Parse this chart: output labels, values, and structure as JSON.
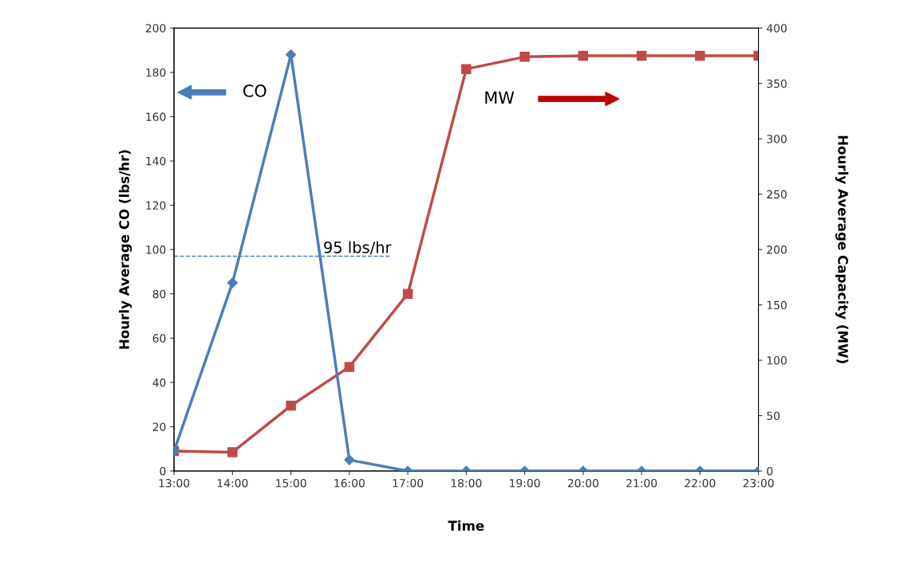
{
  "chart_data": {
    "type": "line",
    "xlabel": "Time",
    "ylabel": "Hourly Average CO (lbs/hr)",
    "y2label": "Hourly Average Capacity (MW)",
    "categories": [
      "13:00",
      "14:00",
      "15:00",
      "16:00",
      "17:00",
      "18:00",
      "19:00",
      "20:00",
      "21:00",
      "22:00",
      "23:00"
    ],
    "series": [
      {
        "color": "#4a7ebb",
        "marker": "diamond",
        "values": [
          9,
          85,
          188,
          5,
          0,
          0,
          0,
          0,
          0,
          0,
          0
        ]
      },
      {
        "color": "#be4b48",
        "marker": "square",
        "axis": "y2",
        "values": [
          18,
          17,
          59,
          94,
          160,
          363,
          374,
          375,
          375,
          375,
          375
        ]
      }
    ],
    "ylim": [
      0,
      200
    ],
    "yticks": [
      0,
      20,
      40,
      60,
      80,
      100,
      120,
      140,
      160,
      180,
      200
    ],
    "y2lim": [
      0,
      400
    ],
    "y2ticks": [
      0,
      50,
      100,
      150,
      200,
      250,
      300,
      350,
      400
    ],
    "ref_lines": [
      {
        "axis": "y",
        "value": 97,
        "label": "95 lbs/hr",
        "color": "#4a7ebb",
        "line_style": "dashed"
      }
    ],
    "annotations": [
      "CO",
      "MW"
    ],
    "grid": false,
    "legend": false
  }
}
